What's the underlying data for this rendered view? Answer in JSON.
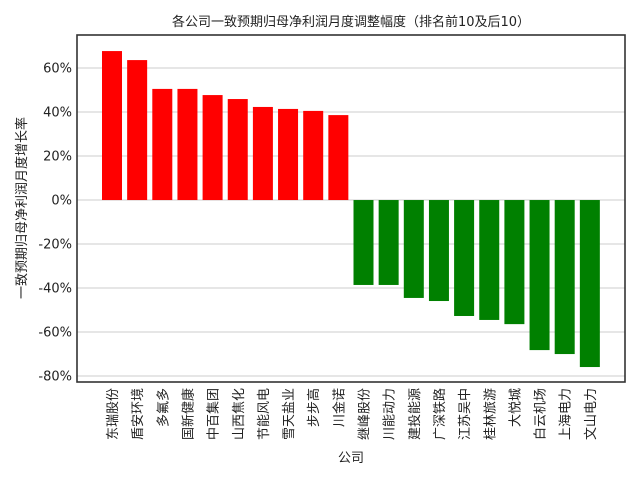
{
  "chart_data": {
    "type": "bar",
    "title": "各公司一致预期归母净利润月度调整幅度（排名前10及后10）",
    "xlabel": "公司",
    "ylabel": "一致预期归母净利润月度增长率",
    "ylim": [
      -82.7,
      75
    ],
    "yticks": [
      -80,
      -60,
      -40,
      -20,
      0,
      20,
      40,
      60
    ],
    "ytick_labels": [
      "-80%",
      "-60%",
      "-40%",
      "-20%",
      "0%",
      "20%",
      "40%",
      "60%"
    ],
    "grid": "y",
    "categories": [
      "东瑞股份",
      "盾安环境",
      "多氟多",
      "国新健康",
      "中百集团",
      "山西焦化",
      "节能风电",
      "雪天盐业",
      "步步高",
      "川金诺",
      "继峰股份",
      "川能动力",
      "建投能源",
      "广深铁路",
      "江苏吴中",
      "桂林旅游",
      "大悦城",
      "白云机场",
      "上海电力",
      "文山电力"
    ],
    "values": [
      67.7,
      63.6,
      50.5,
      50.5,
      47.7,
      45.9,
      42.3,
      41.4,
      40.5,
      38.6,
      -38.6,
      -38.6,
      -44.5,
      -45.9,
      -52.7,
      -54.5,
      -56.4,
      -68.2,
      -70.0,
      -75.9
    ],
    "colors": {
      "positive": "#ff0000",
      "negative": "#008000"
    }
  }
}
